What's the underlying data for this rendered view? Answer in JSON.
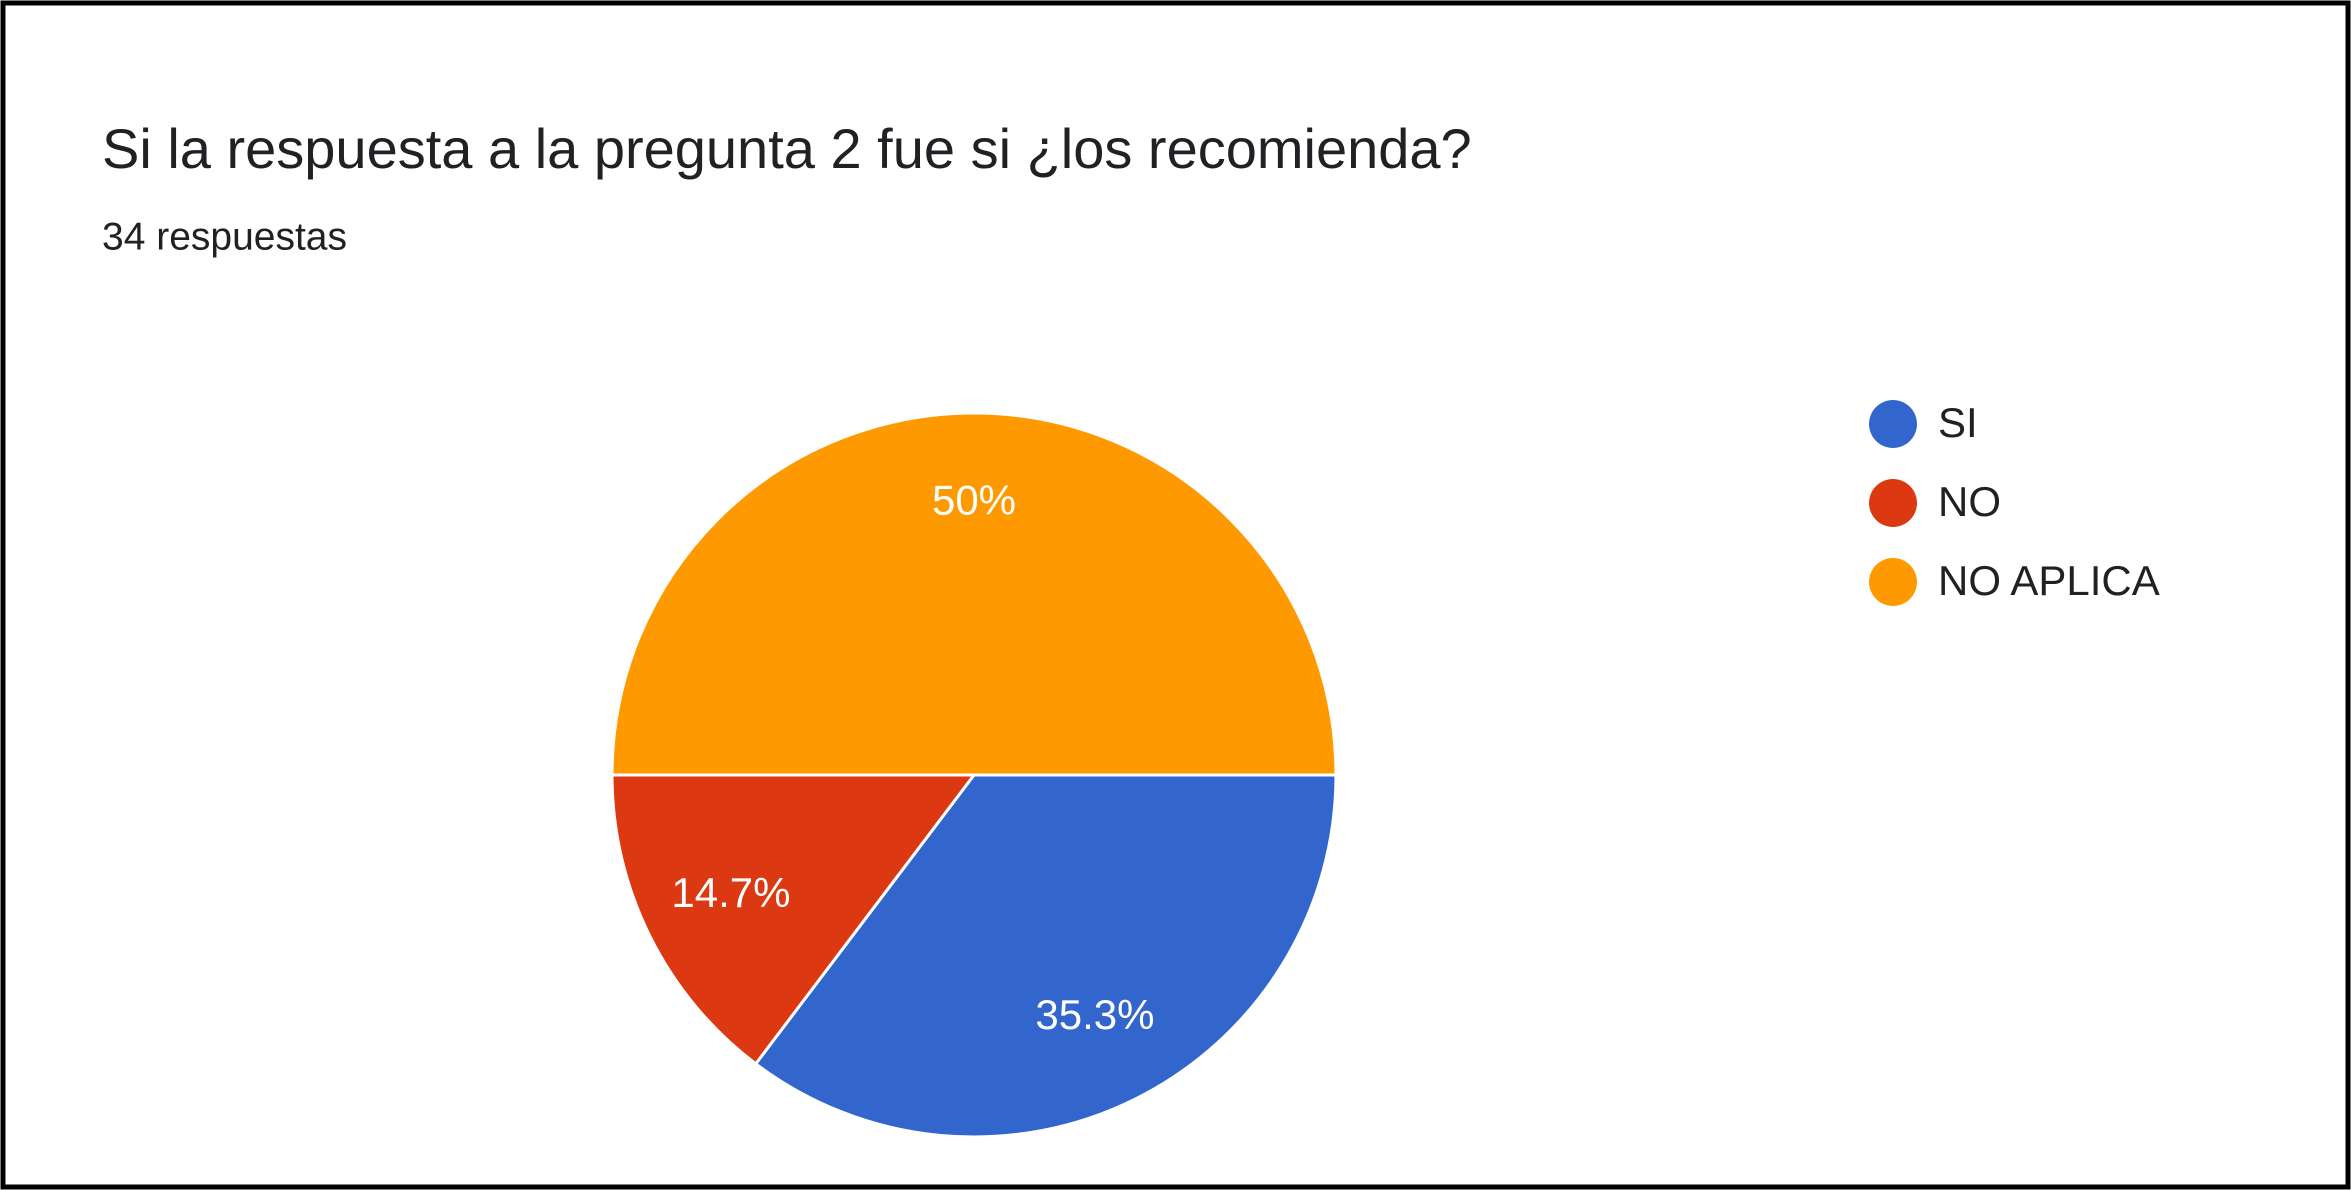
{
  "chart_data": {
    "type": "pie",
    "title": "Si la respuesta a la pregunta 2 fue si ¿los recomienda?",
    "subtitle": "34 respuestas",
    "categories": [
      "SI",
      "NO",
      "NO APLICA"
    ],
    "values": [
      35.3,
      14.7,
      50
    ],
    "value_labels": [
      "35.3%",
      "14.7%",
      "50%"
    ],
    "colors": [
      "#3366cc",
      "#dc3912",
      "#ff9900"
    ],
    "legend": "right"
  }
}
